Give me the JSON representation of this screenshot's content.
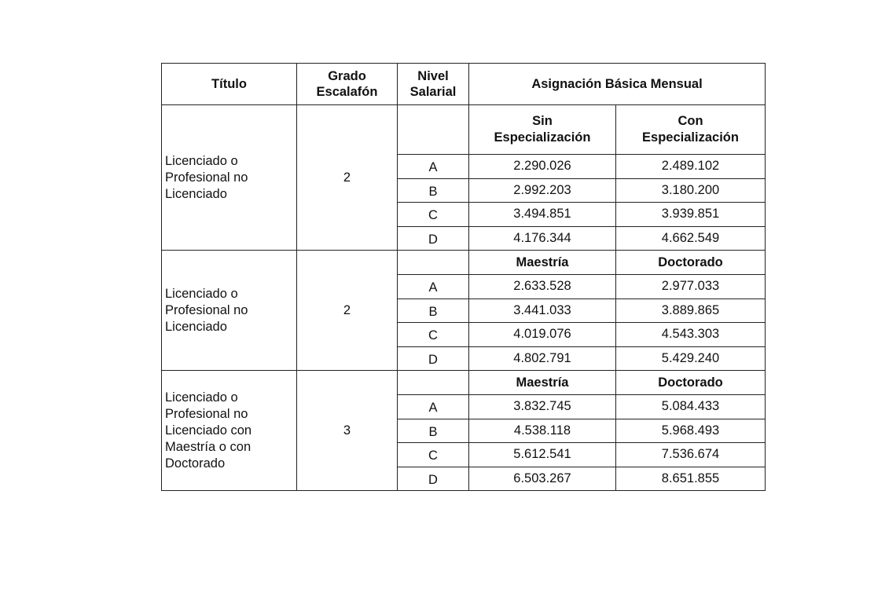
{
  "header": {
    "titulo": "Título",
    "grado": "Grado Escalafón",
    "nivel": "Nivel Salarial",
    "asignacion": "Asignación Básica Mensual"
  },
  "groups": [
    {
      "titulo": "Licenciado o Profesional no Licenciado",
      "grado": "2",
      "col_a": "Sin Especialización",
      "col_b": "Con Especialización",
      "rows": [
        {
          "nivel": "A",
          "a": "2.290.026",
          "b": "2.489.102"
        },
        {
          "nivel": "B",
          "a": "2.992.203",
          "b": "3.180.200"
        },
        {
          "nivel": "C",
          "a": "3.494.851",
          "b": "3.939.851"
        },
        {
          "nivel": "D",
          "a": "4.176.344",
          "b": "4.662.549"
        }
      ]
    },
    {
      "titulo": "Licenciado o Profesional no Licenciado",
      "grado": "2",
      "col_a": "Maestría",
      "col_b": "Doctorado",
      "rows": [
        {
          "nivel": "A",
          "a": "2.633.528",
          "b": "2.977.033"
        },
        {
          "nivel": "B",
          "a": "3.441.033",
          "b": "3.889.865"
        },
        {
          "nivel": "C",
          "a": "4.019.076",
          "b": "4.543.303"
        },
        {
          "nivel": "D",
          "a": "4.802.791",
          "b": "5.429.240"
        }
      ]
    },
    {
      "titulo": "Licenciado o Profesional no Licenciado con Maestría o con Doctorado",
      "grado": "3",
      "col_a": "Maestría",
      "col_b": "Doctorado",
      "rows": [
        {
          "nivel": "A",
          "a": "3.832.745",
          "b": "5.084.433"
        },
        {
          "nivel": "B",
          "a": "4.538.118",
          "b": "5.968.493"
        },
        {
          "nivel": "C",
          "a": "5.612.541",
          "b": "7.536.674"
        },
        {
          "nivel": "D",
          "a": "6.503.267",
          "b": "8.651.855"
        }
      ]
    }
  ]
}
